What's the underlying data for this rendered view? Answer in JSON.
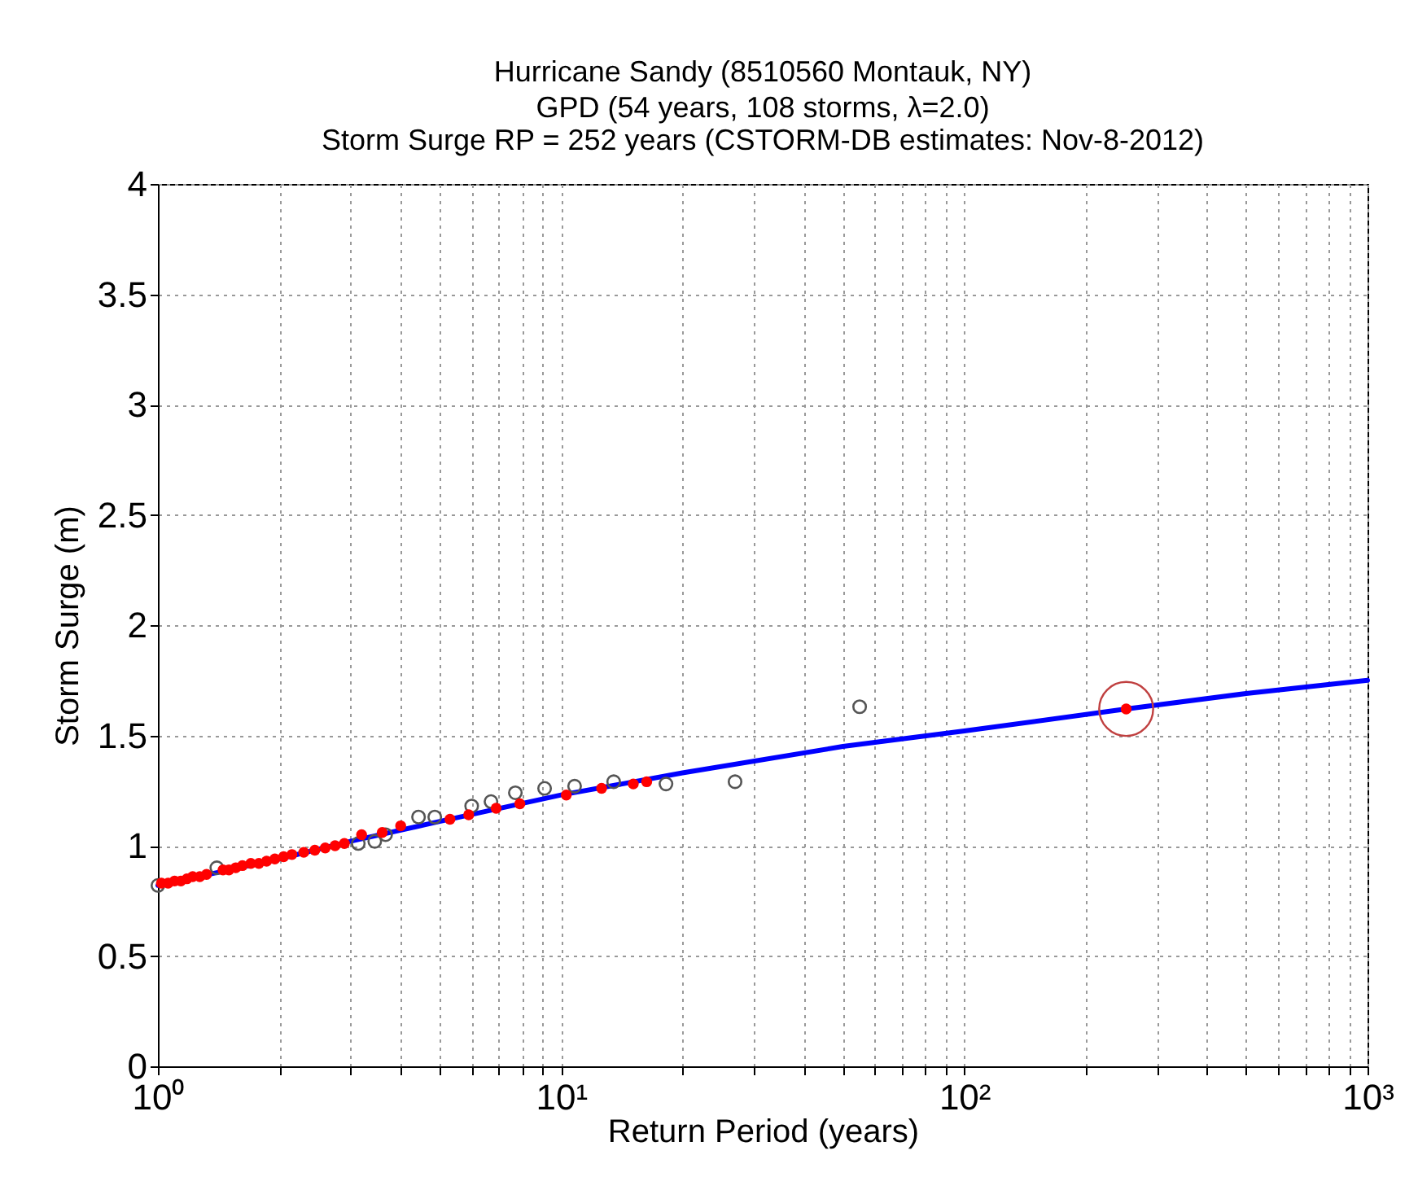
{
  "chart_data": {
    "type": "scatter",
    "title": "Hurricane Sandy (8510560 Montauk, NY)",
    "subtitle": "GPD (54 years, 108 storms, λ=2.0)\nStorm Surge RP = 252 years (CSTORM-DB estimates: Nov-8-2012)",
    "xlabel": "Return Period (years)",
    "ylabel": "Storm Surge (m)",
    "log": "x",
    "grid": true,
    "xlim": [
      1,
      1000
    ],
    "ylim": [
      0,
      4
    ],
    "xticks": [
      {
        "value": 1,
        "label": "10⁰"
      },
      {
        "value": 2,
        "label": null
      },
      {
        "value": 3,
        "label": null
      },
      {
        "value": 4,
        "label": null
      },
      {
        "value": 5,
        "label": null
      },
      {
        "value": 6,
        "label": null
      },
      {
        "value": 7,
        "label": null
      },
      {
        "value": 8,
        "label": null
      },
      {
        "value": 9,
        "label": null
      },
      {
        "value": 10,
        "label": "10¹"
      },
      {
        "value": 20,
        "label": null
      },
      {
        "value": 30,
        "label": null
      },
      {
        "value": 40,
        "label": null
      },
      {
        "value": 50,
        "label": null
      },
      {
        "value": 60,
        "label": null
      },
      {
        "value": 70,
        "label": null
      },
      {
        "value": 80,
        "label": null
      },
      {
        "value": 90,
        "label": null
      },
      {
        "value": 100,
        "label": "10²"
      },
      {
        "value": 200,
        "label": null
      },
      {
        "value": 300,
        "label": null
      },
      {
        "value": 400,
        "label": null
      },
      {
        "value": 500,
        "label": null
      },
      {
        "value": 600,
        "label": null
      },
      {
        "value": 700,
        "label": null
      },
      {
        "value": 800,
        "label": null
      },
      {
        "value": 900,
        "label": null
      },
      {
        "value": 1000,
        "label": "10³"
      }
    ],
    "yticks": [
      0,
      0.5,
      1,
      1.5,
      2,
      2.5,
      3,
      3.5,
      4
    ],
    "series": [
      {
        "type": "line",
        "color": "#0000ff",
        "x": [
          1,
          1.5,
          2,
          3,
          5,
          10,
          20,
          50,
          100,
          252,
          500,
          1000
        ],
        "values": [
          0.82,
          0.89,
          0.94,
          1.02,
          1.11,
          1.23,
          1.33,
          1.45,
          1.52,
          1.62,
          1.69,
          1.75
        ]
      },
      {
        "marker": "circle",
        "color": "#555555",
        "x": [
          1.0,
          1.4,
          3.14,
          3.45,
          3.67,
          4.43,
          4.86,
          6.0,
          6.7,
          7.7,
          9.1,
          10.8,
          13.5,
          18.2,
          27,
          55
        ],
        "values": [
          0.82,
          0.9,
          1.01,
          1.02,
          1.05,
          1.13,
          1.13,
          1.18,
          1.2,
          1.24,
          1.26,
          1.27,
          1.29,
          1.28,
          1.29,
          1.63
        ]
      },
      {
        "marker": "circle",
        "color": "#ff0000",
        "x": [
          1.02,
          1.06,
          1.1,
          1.14,
          1.18,
          1.22,
          1.27,
          1.32,
          1.45,
          1.5,
          1.56,
          1.62,
          1.7,
          1.78,
          1.86,
          1.95,
          2.05,
          2.15,
          2.3,
          2.45,
          2.6,
          2.75,
          2.9,
          3.2,
          3.6,
          4.0,
          5.3,
          5.9,
          6.9,
          7.9,
          10.3,
          12.6,
          15.1,
          16.3,
          252
        ],
        "values": [
          0.83,
          0.83,
          0.84,
          0.84,
          0.85,
          0.86,
          0.86,
          0.87,
          0.89,
          0.89,
          0.9,
          0.91,
          0.92,
          0.92,
          0.93,
          0.94,
          0.95,
          0.96,
          0.97,
          0.98,
          0.99,
          1.0,
          1.01,
          1.05,
          1.06,
          1.09,
          1.12,
          1.14,
          1.17,
          1.19,
          1.23,
          1.26,
          1.28,
          1.29,
          1.62
        ]
      },
      {
        "marker": "circle",
        "color": "#c04040",
        "x": [
          252
        ],
        "values": [
          1.62
        ]
      }
    ]
  }
}
